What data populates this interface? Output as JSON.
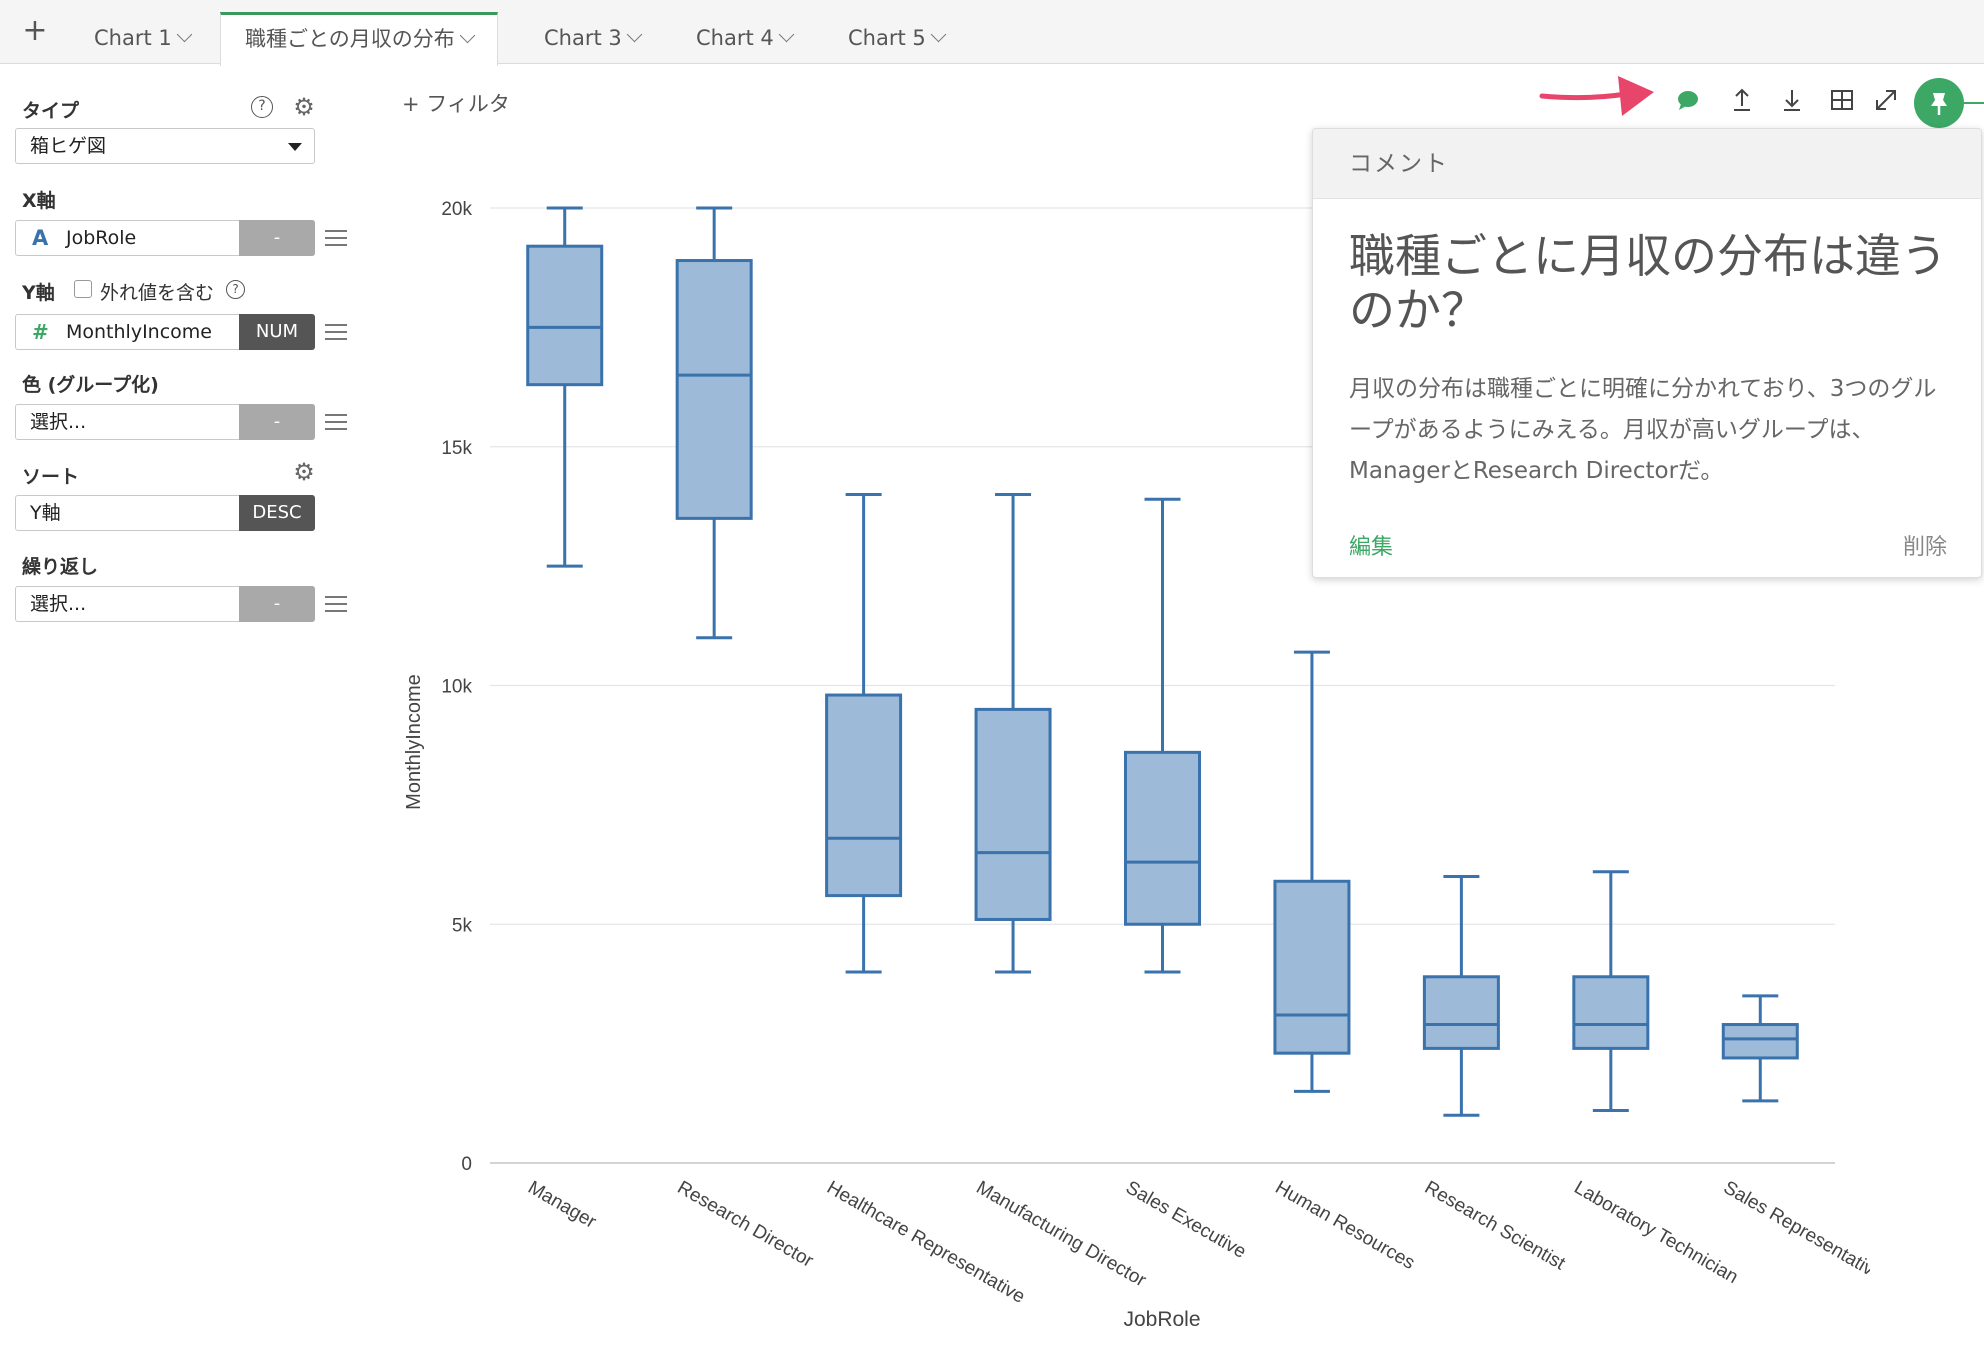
{
  "tabs": {
    "add_label": "+",
    "items": [
      {
        "label": "Chart 1"
      },
      {
        "label": "職種ごとの月収の分布"
      },
      {
        "label": "Chart 3"
      },
      {
        "label": "Chart 4"
      },
      {
        "label": "Chart 5"
      }
    ]
  },
  "panel": {
    "type_label": "タイプ",
    "type_value": "箱ヒゲ図",
    "xaxis_label": "X軸",
    "xaxis_icon": "A",
    "xaxis_value": "JobRole",
    "xaxis_tag": "-",
    "yaxis_label": "Y軸",
    "outlier_label": "外れ値を含む",
    "yaxis_icon": "#",
    "yaxis_value": "MonthlyIncome",
    "yaxis_tag": "NUM",
    "color_label": "色 (グループ化)",
    "color_value": "選択...",
    "color_tag": "-",
    "sort_label": "ソート",
    "sort_value": "Y軸",
    "sort_tag": "DESC",
    "repeat_label": "繰り返し",
    "repeat_value": "選択...",
    "repeat_tag": "-",
    "help_glyph": "?"
  },
  "filter": {
    "label": "+ フィルタ"
  },
  "comment": {
    "header": "コメント",
    "title": "職種ごとに月収の分布は違うのか？",
    "body": "月収の分布は職種ごとに明確に分かれており、3つのグループがあるようにみえる。月収が高いグループは、ManagerとResearch Directorだ。",
    "edit_label": "編集",
    "delete_label": "削除"
  },
  "colors": {
    "accent": "#3da866",
    "box_fill": "#9dbad8",
    "box_stroke": "#3a72ac",
    "arrow": "#e8456b"
  },
  "chart_data": {
    "type": "box",
    "xlabel": "JobRole",
    "ylabel": "MonthlyIncome",
    "ylim": [
      0,
      21000
    ],
    "yticks": [
      {
        "v": 0,
        "label": "0"
      },
      {
        "v": 5000,
        "label": "5k"
      },
      {
        "v": 10000,
        "label": "10k"
      },
      {
        "v": 15000,
        "label": "15k"
      },
      {
        "v": 20000,
        "label": "20k"
      }
    ],
    "categories": [
      "Manager",
      "Research Director",
      "Healthcare Representative",
      "Manufacturing Director",
      "Sales Executive",
      "Human Resources",
      "Research Scientist",
      "Laboratory Technician",
      "Sales Representative"
    ],
    "boxes": [
      {
        "min": 12500,
        "q1": 16300,
        "median": 17500,
        "q3": 19200,
        "max": 20000
      },
      {
        "min": 11000,
        "q1": 13500,
        "median": 16500,
        "q3": 18900,
        "max": 20000
      },
      {
        "min": 4000,
        "q1": 5600,
        "median": 6800,
        "q3": 9800,
        "max": 14000
      },
      {
        "min": 4000,
        "q1": 5100,
        "median": 6500,
        "q3": 9500,
        "max": 14000
      },
      {
        "min": 4000,
        "q1": 5000,
        "median": 6300,
        "q3": 8600,
        "max": 13900
      },
      {
        "min": 1500,
        "q1": 2300,
        "median": 3100,
        "q3": 5900,
        "max": 10700
      },
      {
        "min": 1000,
        "q1": 2400,
        "median": 2900,
        "q3": 3900,
        "max": 6000
      },
      {
        "min": 1100,
        "q1": 2400,
        "median": 2900,
        "q3": 3900,
        "max": 6100
      },
      {
        "min": 1300,
        "q1": 2200,
        "median": 2600,
        "q3": 2900,
        "max": 3500
      }
    ],
    "grid": true,
    "legend": "none"
  }
}
